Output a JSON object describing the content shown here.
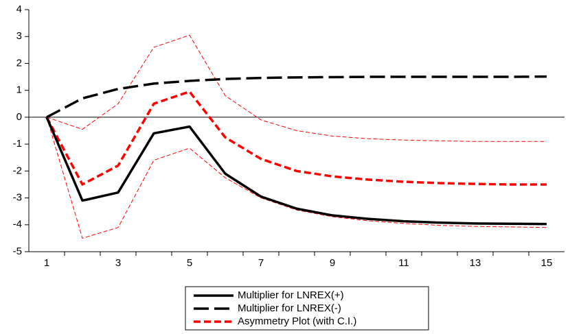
{
  "chart_data": {
    "type": "line",
    "categories": [
      "1",
      null,
      "3",
      null,
      "5",
      null,
      "7",
      null,
      "9",
      null,
      "11",
      null,
      "13",
      null,
      "15"
    ],
    "ylim": [
      -5,
      4
    ],
    "yticks": [
      -5,
      -4,
      -3,
      -2,
      -1,
      0,
      1,
      2,
      3,
      4
    ],
    "zero_line": true,
    "legend": "bottom",
    "series": [
      {
        "name": "Multiplier for LNREX(+)",
        "color": "#000000",
        "style": "thick-solid",
        "values": [
          0,
          -3.1,
          -2.8,
          -0.6,
          -0.35,
          -2.1,
          -2.95,
          -3.4,
          -3.65,
          -3.78,
          -3.87,
          -3.92,
          -3.95,
          -3.96,
          -3.97
        ]
      },
      {
        "name": "Multiplier for LNREX(-)",
        "color": "#000000",
        "style": "thick-long-dash",
        "values": [
          0,
          0.7,
          1.05,
          1.25,
          1.35,
          1.42,
          1.46,
          1.48,
          1.49,
          1.5,
          1.5,
          1.5,
          1.5,
          1.5,
          1.51
        ]
      },
      {
        "name": "Asymmetry Plot (with C.I.)",
        "color": "#ff0000",
        "style": "thick-dash",
        "values": [
          0,
          -2.5,
          -1.8,
          0.5,
          0.95,
          -0.75,
          -1.55,
          -2.0,
          -2.2,
          -2.32,
          -2.4,
          -2.45,
          -2.48,
          -2.5,
          -2.5
        ]
      },
      {
        "color": "#ff0000",
        "style": "thin-dash",
        "values": [
          0,
          -0.45,
          0.5,
          2.6,
          3.05,
          0.8,
          -0.1,
          -0.5,
          -0.7,
          -0.8,
          -0.85,
          -0.88,
          -0.9,
          -0.9,
          -0.9
        ]
      },
      {
        "color": "#ff0000",
        "style": "thin-dash",
        "values": [
          0,
          -4.5,
          -4.1,
          -1.6,
          -1.15,
          -2.25,
          -3.0,
          -3.45,
          -3.7,
          -3.85,
          -3.95,
          -4.02,
          -4.06,
          -4.08,
          -4.1
        ]
      }
    ]
  }
}
